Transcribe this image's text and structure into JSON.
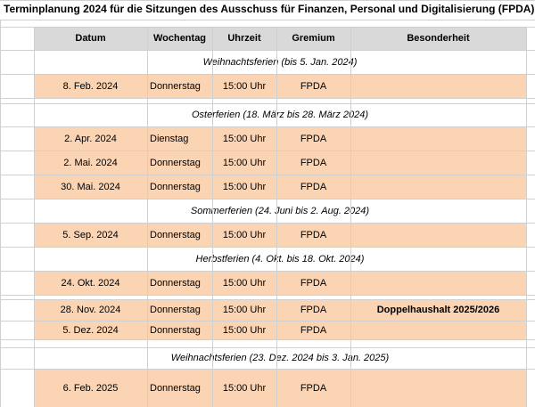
{
  "title": "Terminplanung 2024 für die Sitzungen des Ausschuss für Finanzen, Personal und Digitalisierung (FPDA)",
  "table": {
    "columns": [
      "Datum",
      "Wochentag",
      "Uhrzeit",
      "Gremium",
      "Besonderheit"
    ],
    "rows": [
      {
        "note": "Weihnachtsferien (bis 5. Jan. 2024)"
      },
      {
        "datum": "8. Feb. 2024",
        "wochentag": "Donnerstag",
        "uhrzeit": "15:00 Uhr",
        "gremium": "FPDA"
      },
      {
        "note": "Osterferien (18. März bis 28. März 2024)"
      },
      {
        "datum": "2. Apr. 2024",
        "wochentag": "Dienstag",
        "uhrzeit": "15:00 Uhr",
        "gremium": "FPDA"
      },
      {
        "datum": "2. Mai. 2024",
        "wochentag": "Donnerstag",
        "uhrzeit": "15:00 Uhr",
        "gremium": "FPDA"
      },
      {
        "datum": "30. Mai. 2024",
        "wochentag": "Donnerstag",
        "uhrzeit": "15:00 Uhr",
        "gremium": "FPDA"
      },
      {
        "note": "Sommerferien (24. Juni bis 2. Aug. 2024)"
      },
      {
        "datum": "5. Sep. 2024",
        "wochentag": "Donnerstag",
        "uhrzeit": "15:00 Uhr",
        "gremium": "FPDA"
      },
      {
        "note": "Herbstferien (4. Okt. bis 18. Okt. 2024)"
      },
      {
        "datum": "24. Okt. 2024",
        "wochentag": "Donnerstag",
        "uhrzeit": "15:00 Uhr",
        "gremium": "FPDA"
      },
      {
        "datum": "28. Nov. 2024",
        "wochentag": "Donnerstag",
        "uhrzeit": "15:00 Uhr",
        "gremium": "FPDA",
        "besonderheit": "Doppelhaushalt 2025/2026"
      },
      {
        "datum": "5. Dez. 2024",
        "wochentag": "Donnerstag",
        "uhrzeit": "15:00 Uhr",
        "gremium": "FPDA"
      },
      {
        "note": "Weihnachtsferien (23. Dez. 2024 bis 3. Jan. 2025)"
      },
      {
        "datum": "6. Feb. 2025",
        "wochentag": "Donnerstag",
        "uhrzeit": "15:00 Uhr",
        "gremium": "FPDA"
      }
    ]
  }
}
